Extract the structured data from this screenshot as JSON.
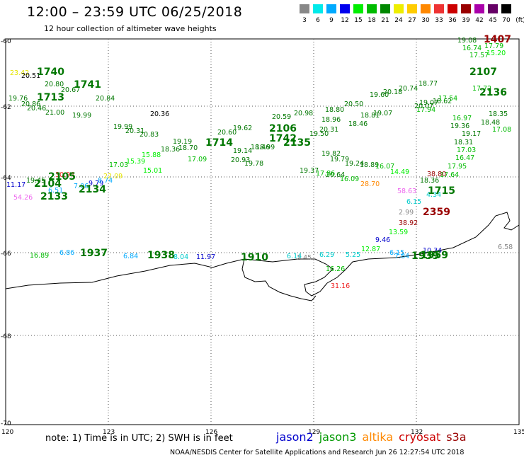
{
  "title": "12:00 – 23:59 UTC 06/25/2018",
  "subtitle": "12 hour collection of altimeter wave heights",
  "legend": {
    "unit": "(ft)",
    "colors": [
      "#888888",
      "#00eaea",
      "#00aaff",
      "#0000ee",
      "#00ee00",
      "#00bb00",
      "#008800",
      "#eeee00",
      "#ffcc00",
      "#ff8800",
      "#ee3333",
      "#cc0000",
      "#990000",
      "#aa00aa",
      "#660066",
      "#000000"
    ],
    "labels": [
      "3",
      "6",
      "9",
      "12",
      "15",
      "18",
      "21",
      "24",
      "27",
      "30",
      "33",
      "36",
      "39",
      "42",
      "45",
      "70"
    ]
  },
  "axes": {
    "lat_labels": [
      "-60",
      "-62",
      "-64",
      "-66",
      "-68",
      "-70"
    ],
    "lon_labels": [
      "120",
      "123",
      "126",
      "129",
      "132",
      "135"
    ]
  },
  "map_data": {
    "track_labels": [
      {
        "t": "1740",
        "c": "#007700",
        "b": true
      },
      {
        "t": "1741",
        "c": "#007700",
        "b": true
      },
      {
        "t": "1713",
        "c": "#007700",
        "b": true
      },
      {
        "t": "2106",
        "c": "#007700",
        "b": true
      },
      {
        "t": "1714",
        "c": "#007700",
        "b": true
      },
      {
        "t": "1742",
        "c": "#007700",
        "b": true
      },
      {
        "t": "2135",
        "c": "#007700",
        "b": true
      },
      {
        "t": "2105",
        "c": "#007700",
        "b": true
      },
      {
        "t": "2104",
        "c": "#007700",
        "b": true
      },
      {
        "t": "2134",
        "c": "#007700",
        "b": true
      },
      {
        "t": "2133",
        "c": "#007700",
        "b": true
      },
      {
        "t": "1407",
        "c": "#990000",
        "b": true
      },
      {
        "t": "2107",
        "c": "#007700",
        "b": true
      },
      {
        "t": "2136",
        "c": "#007700",
        "b": true
      },
      {
        "t": "1715",
        "c": "#007700",
        "b": true
      },
      {
        "t": "2359",
        "c": "#990000",
        "b": true
      },
      {
        "t": "1937",
        "c": "#007700",
        "b": true
      },
      {
        "t": "1938",
        "c": "#007700",
        "b": true
      },
      {
        "t": "1939",
        "c": "#007700",
        "b": true
      },
      {
        "t": "1910",
        "c": "#007700",
        "b": true
      },
      {
        "t": "1959",
        "c": "#007700",
        "b": true
      }
    ],
    "heights": [
      {
        "t": "23.42",
        "c": "#e5e500"
      },
      {
        "t": "20.51",
        "c": "#000000"
      },
      {
        "t": "20.80",
        "c": "#007700"
      },
      {
        "t": "20.67",
        "c": "#007700"
      },
      {
        "t": "19.76",
        "c": "#007700"
      },
      {
        "t": "20.86",
        "c": "#007700"
      },
      {
        "t": "20.46",
        "c": "#007700"
      },
      {
        "t": "21.00",
        "c": "#007700"
      },
      {
        "t": "19.99",
        "c": "#007700"
      },
      {
        "t": "20.84",
        "c": "#007700"
      },
      {
        "t": "20.36",
        "c": "#000000"
      },
      {
        "t": "19.99",
        "c": "#007700"
      },
      {
        "t": "20.31",
        "c": "#007700"
      },
      {
        "t": "20.83",
        "c": "#007700"
      },
      {
        "t": "19.19",
        "c": "#007700"
      },
      {
        "t": "18.36",
        "c": "#007700"
      },
      {
        "t": "18.70",
        "c": "#007700"
      },
      {
        "t": "19.62",
        "c": "#007700"
      },
      {
        "t": "20.60",
        "c": "#007700"
      },
      {
        "t": "20.59",
        "c": "#007700"
      },
      {
        "t": "20.98",
        "c": "#007700"
      },
      {
        "t": "20.31",
        "c": "#007700"
      },
      {
        "t": "19.50",
        "c": "#007700"
      },
      {
        "t": "18.99",
        "c": "#007700"
      },
      {
        "t": "18.46",
        "c": "#007700"
      },
      {
        "t": "19.14",
        "c": "#007700"
      },
      {
        "t": "20.93",
        "c": "#007700"
      },
      {
        "t": "19.78",
        "c": "#007700"
      },
      {
        "t": "19.82",
        "c": "#007700"
      },
      {
        "t": "19.37",
        "c": "#007700"
      },
      {
        "t": "19.79",
        "c": "#007700"
      },
      {
        "t": "19.24",
        "c": "#007700"
      },
      {
        "t": "18.89",
        "c": "#007700"
      },
      {
        "t": "16.07",
        "c": "#00bb00"
      },
      {
        "t": "20.64",
        "c": "#007700"
      },
      {
        "t": "16.09",
        "c": "#00bb00"
      },
      {
        "t": "17.86",
        "c": "#00bb00"
      },
      {
        "t": "28.70",
        "c": "#ff8800"
      },
      {
        "t": "14.49",
        "c": "#00ee00"
      },
      {
        "t": "20.50",
        "c": "#007700"
      },
      {
        "t": "18.80",
        "c": "#007700"
      },
      {
        "t": "18.96",
        "c": "#007700"
      },
      {
        "t": "18.46",
        "c": "#007700"
      },
      {
        "t": "18.81",
        "c": "#007700"
      },
      {
        "t": "19.07",
        "c": "#007700"
      },
      {
        "t": "19.60",
        "c": "#007700"
      },
      {
        "t": "20.18",
        "c": "#007700"
      },
      {
        "t": "20.74",
        "c": "#007700"
      },
      {
        "t": "18.77",
        "c": "#007700"
      },
      {
        "t": "19.07",
        "c": "#007700"
      },
      {
        "t": "17.94",
        "c": "#00bb00"
      },
      {
        "t": "18.62",
        "c": "#007700"
      },
      {
        "t": "20.07",
        "c": "#007700"
      },
      {
        "t": "17.54",
        "c": "#00bb00"
      },
      {
        "t": "17.72",
        "c": "#00bb00"
      },
      {
        "t": "19.08",
        "c": "#007700"
      },
      {
        "t": "16.74",
        "c": "#00bb00"
      },
      {
        "t": "17.79",
        "c": "#00bb00"
      },
      {
        "t": "17.57",
        "c": "#00bb00"
      },
      {
        "t": "15.20",
        "c": "#00ee00"
      },
      {
        "t": "16.97",
        "c": "#00bb00"
      },
      {
        "t": "19.36",
        "c": "#007700"
      },
      {
        "t": "19.17",
        "c": "#007700"
      },
      {
        "t": "18.31",
        "c": "#007700"
      },
      {
        "t": "17.03",
        "c": "#00bb00"
      },
      {
        "t": "16.47",
        "c": "#00bb00"
      },
      {
        "t": "17.95",
        "c": "#00bb00"
      },
      {
        "t": "17.64",
        "c": "#00bb00"
      },
      {
        "t": "18.48",
        "c": "#007700"
      },
      {
        "t": "17.08",
        "c": "#00bb00"
      },
      {
        "t": "18.35",
        "c": "#007700"
      },
      {
        "t": "38.80",
        "c": "#990000"
      },
      {
        "t": "18.36",
        "c": "#007700"
      },
      {
        "t": "58.63",
        "c": "#ee66ee"
      },
      {
        "t": "4.34",
        "c": "#00cccc"
      },
      {
        "t": "6.15",
        "c": "#00cccc"
      },
      {
        "t": "2.99",
        "c": "#888888"
      },
      {
        "t": "38.92",
        "c": "#990000"
      },
      {
        "t": "13.59",
        "c": "#00ee00"
      },
      {
        "t": "9.46",
        "c": "#0000cc"
      },
      {
        "t": "12.87",
        "c": "#00ee00"
      },
      {
        "t": "10.34",
        "c": "#0000cc"
      },
      {
        "t": "7.84",
        "c": "#00aaff"
      },
      {
        "t": "6.15",
        "c": "#00aaff"
      },
      {
        "t": "5.25",
        "c": "#00cccc"
      },
      {
        "t": "6.29",
        "c": "#00cccc"
      },
      {
        "t": "6.14",
        "c": "#00cccc"
      },
      {
        "t": "2.45",
        "c": "#888888"
      },
      {
        "t": "31.16",
        "c": "#ee2222"
      },
      {
        "t": "30.94",
        "c": "#ee2222"
      },
      {
        "t": "19.45",
        "c": "#007700"
      },
      {
        "t": "9.79",
        "c": "#0000cc"
      },
      {
        "t": "8.74",
        "c": "#00aaff"
      },
      {
        "t": "7.06",
        "c": "#00aaff"
      },
      {
        "t": "6.51",
        "c": "#00aaff"
      },
      {
        "t": "11.17",
        "c": "#0000cc"
      },
      {
        "t": "54.26",
        "c": "#ee66ee"
      },
      {
        "t": "22.09",
        "c": "#e5e500"
      },
      {
        "t": "15.01",
        "c": "#00ee00"
      },
      {
        "t": "15.39",
        "c": "#00ee00"
      },
      {
        "t": "17.03",
        "c": "#00bb00"
      },
      {
        "t": "15.88",
        "c": "#00ee00"
      },
      {
        "t": "17.09",
        "c": "#00bb00"
      },
      {
        "t": "16.89",
        "c": "#00bb00"
      },
      {
        "t": "6.86",
        "c": "#00aaff"
      },
      {
        "t": "6.84",
        "c": "#00aaff"
      },
      {
        "t": "6.58",
        "c": "#888888"
      },
      {
        "t": "8.04",
        "c": "#00cccc"
      },
      {
        "t": "11.97",
        "c": "#0000cc"
      },
      {
        "t": "16.26",
        "c": "#00bb00"
      },
      {
        "t": "18.46",
        "c": "#007700"
      }
    ]
  },
  "notes": "note:  1) Time is in UTC;  2) SWH is in feet",
  "satellites": [
    {
      "name": "jason2",
      "color": "#0000cc"
    },
    {
      "name": "jason3",
      "color": "#009900"
    },
    {
      "name": "altika",
      "color": "#ff8800"
    },
    {
      "name": "cryosat",
      "color": "#cc0000"
    },
    {
      "name": "s3a",
      "color": "#990000"
    }
  ],
  "footer": "NOAA/NESDIS Center for Satellite Applications and Research     Jun 26 12:27:54 UTC 2018"
}
